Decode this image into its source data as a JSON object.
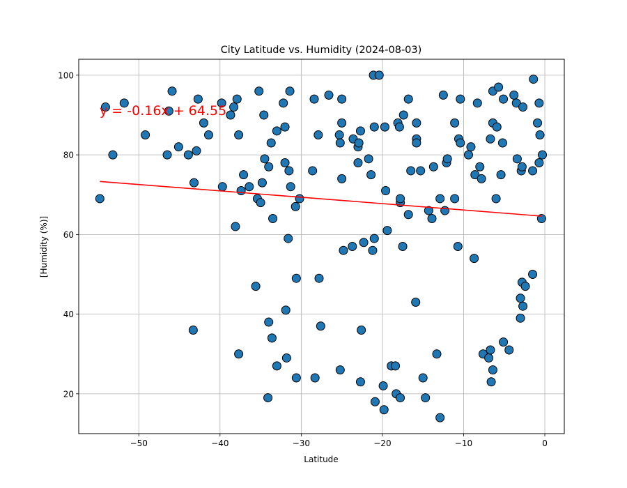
{
  "chart_data": {
    "type": "scatter",
    "title": "City Latitude vs. Humidity (2024-08-03)",
    "xlabel": "Latitude",
    "ylabel": "[Humidity (%)]",
    "xlim": [
      -57.4,
      2.4
    ],
    "ylim": [
      10,
      104
    ],
    "xticks": [
      -50,
      -40,
      -30,
      -20,
      -10,
      0
    ],
    "yticks": [
      20,
      40,
      60,
      80,
      100
    ],
    "grid": true,
    "marker_color": "#1f77b4",
    "marker_edge": "#000000",
    "regression": {
      "equation": "y = -0.16x + 64.55",
      "slope": -0.16,
      "intercept": 64.55,
      "x_range": [
        -54.8,
        -0.4
      ],
      "color": "#ff0000"
    },
    "points": [
      [
        -54.8,
        69
      ],
      [
        -54.1,
        92
      ],
      [
        -53.2,
        80
      ],
      [
        -51.8,
        93
      ],
      [
        -49.2,
        85
      ],
      [
        -46.5,
        80
      ],
      [
        -46.3,
        91
      ],
      [
        -45.9,
        96
      ],
      [
        -45.1,
        82
      ],
      [
        -43.9,
        80
      ],
      [
        -43.2,
        73
      ],
      [
        -43.3,
        36
      ],
      [
        -42.9,
        81
      ],
      [
        -42.7,
        94
      ],
      [
        -42.0,
        88
      ],
      [
        -41.4,
        85
      ],
      [
        -39.8,
        93
      ],
      [
        -39.7,
        72
      ],
      [
        -38.7,
        90
      ],
      [
        -38.3,
        92
      ],
      [
        -38.1,
        62
      ],
      [
        -37.9,
        94
      ],
      [
        -37.7,
        85
      ],
      [
        -37.7,
        30
      ],
      [
        -37.4,
        71
      ],
      [
        -37.1,
        75
      ],
      [
        -36.4,
        72
      ],
      [
        -35.6,
        47
      ],
      [
        -35.4,
        69
      ],
      [
        -35.2,
        96
      ],
      [
        -35.0,
        68
      ],
      [
        -34.8,
        73
      ],
      [
        -34.6,
        90
      ],
      [
        -34.5,
        79
      ],
      [
        -34.1,
        19
      ],
      [
        -34.0,
        77
      ],
      [
        -34.0,
        38
      ],
      [
        -33.7,
        83
      ],
      [
        -33.6,
        34
      ],
      [
        -33.5,
        64
      ],
      [
        -33.0,
        86
      ],
      [
        -33.0,
        27
      ],
      [
        -32.2,
        93
      ],
      [
        -32.0,
        87
      ],
      [
        -32.0,
        78
      ],
      [
        -31.9,
        41
      ],
      [
        -31.8,
        29
      ],
      [
        -31.6,
        59
      ],
      [
        -31.5,
        76
      ],
      [
        -31.4,
        96
      ],
      [
        -31.3,
        72
      ],
      [
        -30.7,
        67
      ],
      [
        -30.6,
        49
      ],
      [
        -30.6,
        24
      ],
      [
        -30.2,
        69
      ],
      [
        -28.6,
        76
      ],
      [
        -28.4,
        94
      ],
      [
        -28.3,
        24
      ],
      [
        -27.9,
        85
      ],
      [
        -27.8,
        49
      ],
      [
        -27.6,
        37
      ],
      [
        -26.6,
        95
      ],
      [
        -25.3,
        85
      ],
      [
        -25.2,
        83
      ],
      [
        -25.2,
        26
      ],
      [
        -25.0,
        94
      ],
      [
        -25.0,
        88
      ],
      [
        -25.0,
        74
      ],
      [
        -24.8,
        56
      ],
      [
        -23.7,
        57
      ],
      [
        -23.6,
        84
      ],
      [
        -23.0,
        82
      ],
      [
        -23.0,
        78
      ],
      [
        -22.9,
        83
      ],
      [
        -22.7,
        86
      ],
      [
        -22.7,
        23
      ],
      [
        -22.6,
        36
      ],
      [
        -22.3,
        58
      ],
      [
        -21.7,
        79
      ],
      [
        -21.4,
        75
      ],
      [
        -21.2,
        56
      ],
      [
        -21.1,
        100
      ],
      [
        -21.0,
        59
      ],
      [
        -21.0,
        87
      ],
      [
        -20.9,
        18
      ],
      [
        -20.4,
        100
      ],
      [
        -19.9,
        22
      ],
      [
        -19.8,
        16
      ],
      [
        -19.7,
        87
      ],
      [
        -19.6,
        71
      ],
      [
        -19.4,
        61
      ],
      [
        -18.9,
        27
      ],
      [
        -18.4,
        27
      ],
      [
        -18.3,
        20
      ],
      [
        -18.1,
        88
      ],
      [
        -17.9,
        87
      ],
      [
        -17.8,
        68
      ],
      [
        -17.8,
        69
      ],
      [
        -17.8,
        19
      ],
      [
        -17.5,
        57
      ],
      [
        -17.4,
        90
      ],
      [
        -16.8,
        94
      ],
      [
        -16.8,
        65
      ],
      [
        -16.5,
        76
      ],
      [
        -15.9,
        43
      ],
      [
        -15.8,
        84
      ],
      [
        -15.8,
        83
      ],
      [
        -15.8,
        88
      ],
      [
        -15.3,
        76
      ],
      [
        -15.0,
        24
      ],
      [
        -14.7,
        19
      ],
      [
        -14.3,
        66
      ],
      [
        -13.9,
        64
      ],
      [
        -13.7,
        77
      ],
      [
        -13.3,
        30
      ],
      [
        -12.9,
        69
      ],
      [
        -12.9,
        14
      ],
      [
        -12.5,
        95
      ],
      [
        -12.3,
        66
      ],
      [
        -12.1,
        78
      ],
      [
        -12.0,
        79
      ],
      [
        -11.1,
        88
      ],
      [
        -11.1,
        69
      ],
      [
        -10.7,
        57
      ],
      [
        -10.6,
        84
      ],
      [
        -10.4,
        83
      ],
      [
        -10.4,
        94
      ],
      [
        -9.4,
        80
      ],
      [
        -9.1,
        82
      ],
      [
        -8.7,
        54
      ],
      [
        -8.6,
        75
      ],
      [
        -8.3,
        93
      ],
      [
        -8.0,
        77
      ],
      [
        -7.8,
        74
      ],
      [
        -7.6,
        30
      ],
      [
        -6.9,
        29
      ],
      [
        -6.7,
        84
      ],
      [
        -6.7,
        31
      ],
      [
        -6.6,
        23
      ],
      [
        -6.4,
        88
      ],
      [
        -6.4,
        96
      ],
      [
        -6.4,
        26
      ],
      [
        -6.0,
        69
      ],
      [
        -5.9,
        87
      ],
      [
        -5.7,
        97
      ],
      [
        -5.4,
        75
      ],
      [
        -5.2,
        83
      ],
      [
        -5.1,
        94
      ],
      [
        -5.1,
        33
      ],
      [
        -4.4,
        31
      ],
      [
        -3.8,
        95
      ],
      [
        -3.5,
        93
      ],
      [
        -3.4,
        79
      ],
      [
        -3.0,
        39
      ],
      [
        -3.0,
        44
      ],
      [
        -2.9,
        76
      ],
      [
        -2.8,
        48
      ],
      [
        -2.8,
        77
      ],
      [
        -2.7,
        92
      ],
      [
        -2.7,
        42
      ],
      [
        -2.4,
        47
      ],
      [
        -1.5,
        50
      ],
      [
        -1.5,
        76
      ],
      [
        -1.4,
        99
      ],
      [
        -0.9,
        88
      ],
      [
        -0.7,
        78
      ],
      [
        -0.7,
        93
      ],
      [
        -0.6,
        85
      ],
      [
        -0.4,
        64
      ],
      [
        -0.3,
        80
      ]
    ]
  }
}
